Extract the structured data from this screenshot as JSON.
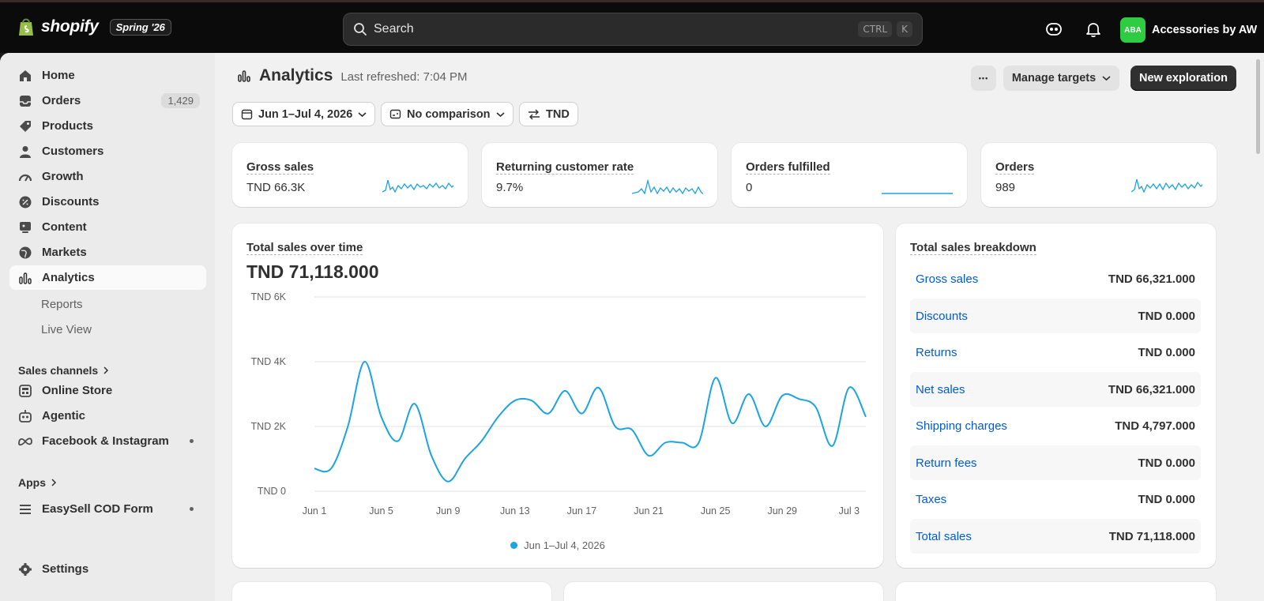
{
  "topbar": {
    "brand": "shopify",
    "edition": "Spring '26",
    "search_placeholder": "Search",
    "shortcut_ctrl": "CTRL",
    "shortcut_key": "K",
    "store_initials": "ABA",
    "store_name": "Accessories by AW"
  },
  "sidebar": {
    "items": [
      {
        "label": "Home",
        "icon": "home-icon"
      },
      {
        "label": "Orders",
        "icon": "inbox-icon",
        "badge": "1,429"
      },
      {
        "label": "Products",
        "icon": "tag-icon"
      },
      {
        "label": "Customers",
        "icon": "person-icon"
      },
      {
        "label": "Growth",
        "icon": "gauge-icon"
      },
      {
        "label": "Discounts",
        "icon": "discount-icon"
      },
      {
        "label": "Content",
        "icon": "content-icon"
      },
      {
        "label": "Markets",
        "icon": "globe-icon"
      },
      {
        "label": "Analytics",
        "icon": "bar-chart-icon"
      }
    ],
    "analytics_sub": [
      "Reports",
      "Live View"
    ],
    "sales_channels_label": "Sales channels",
    "channels": [
      {
        "label": "Online Store",
        "icon": "store-icon"
      },
      {
        "label": "Agentic",
        "icon": "robot-icon"
      },
      {
        "label": "Facebook & Instagram",
        "icon": "meta-icon"
      }
    ],
    "apps_label": "Apps",
    "apps": [
      {
        "label": "EasySell COD Form",
        "icon": "list-icon"
      }
    ],
    "settings_label": "Settings"
  },
  "header": {
    "title": "Analytics",
    "refreshed": "Last refreshed: 7:04 PM",
    "more_label": "•••",
    "manage_targets": "Manage targets",
    "new_exploration": "New exploration"
  },
  "filters": {
    "date_range": "Jun 1–Jul 4, 2026",
    "comparison": "No comparison",
    "currency": "TND"
  },
  "kpis": [
    {
      "label": "Gross sales",
      "value": "TND 66.3K"
    },
    {
      "label": "Returning customer rate",
      "value": "9.7%"
    },
    {
      "label": "Orders fulfilled",
      "value": "0"
    },
    {
      "label": "Orders",
      "value": "989"
    }
  ],
  "chart": {
    "title": "Total sales over time",
    "total": "TND 71,118.000",
    "legend": "Jun 1–Jul 4, 2026",
    "color": "#1ba3e3"
  },
  "chart_data": {
    "type": "line",
    "x": [
      "Jun 1",
      "Jun 2",
      "Jun 3",
      "Jun 4",
      "Jun 5",
      "Jun 6",
      "Jun 7",
      "Jun 8",
      "Jun 9",
      "Jun 10",
      "Jun 11",
      "Jun 12",
      "Jun 13",
      "Jun 14",
      "Jun 15",
      "Jun 16",
      "Jun 17",
      "Jun 18",
      "Jun 19",
      "Jun 20",
      "Jun 21",
      "Jun 22",
      "Jun 23",
      "Jun 24",
      "Jun 25",
      "Jun 26",
      "Jun 27",
      "Jun 28",
      "Jun 29",
      "Jun 30",
      "Jul 1",
      "Jul 2",
      "Jul 3",
      "Jul 4"
    ],
    "series": [
      {
        "name": "Jun 1–Jul 4, 2026",
        "values": [
          700,
          700,
          2000,
          4000,
          2300,
          1550,
          2700,
          1100,
          300,
          1000,
          1550,
          2300,
          2800,
          2800,
          2400,
          3100,
          2400,
          3200,
          2000,
          1900,
          1100,
          1500,
          1500,
          1500,
          3500,
          2100,
          3000,
          2000,
          2950,
          2850,
          2600,
          1400,
          3200,
          2300
        ]
      }
    ],
    "x_ticks": [
      "Jun 1",
      "Jun 5",
      "Jun 9",
      "Jun 13",
      "Jun 17",
      "Jun 21",
      "Jun 25",
      "Jun 29",
      "Jul 3"
    ],
    "y_ticks": [
      "TND 0",
      "TND 2K",
      "TND 4K",
      "TND 6K"
    ],
    "ylim": [
      0,
      6000
    ],
    "grid": true,
    "legend_position": "bottom"
  },
  "breakdown": {
    "title": "Total sales breakdown",
    "rows": [
      {
        "label": "Gross sales",
        "value": "TND 66,321.000"
      },
      {
        "label": "Discounts",
        "value": "TND 0.000"
      },
      {
        "label": "Returns",
        "value": "TND 0.000"
      },
      {
        "label": "Net sales",
        "value": "TND 66,321.000"
      },
      {
        "label": "Shipping charges",
        "value": "TND 4,797.000"
      },
      {
        "label": "Return fees",
        "value": "TND 0.000"
      },
      {
        "label": "Taxes",
        "value": "TND 0.000"
      },
      {
        "label": "Total sales",
        "value": "TND 71,118.000"
      }
    ]
  }
}
